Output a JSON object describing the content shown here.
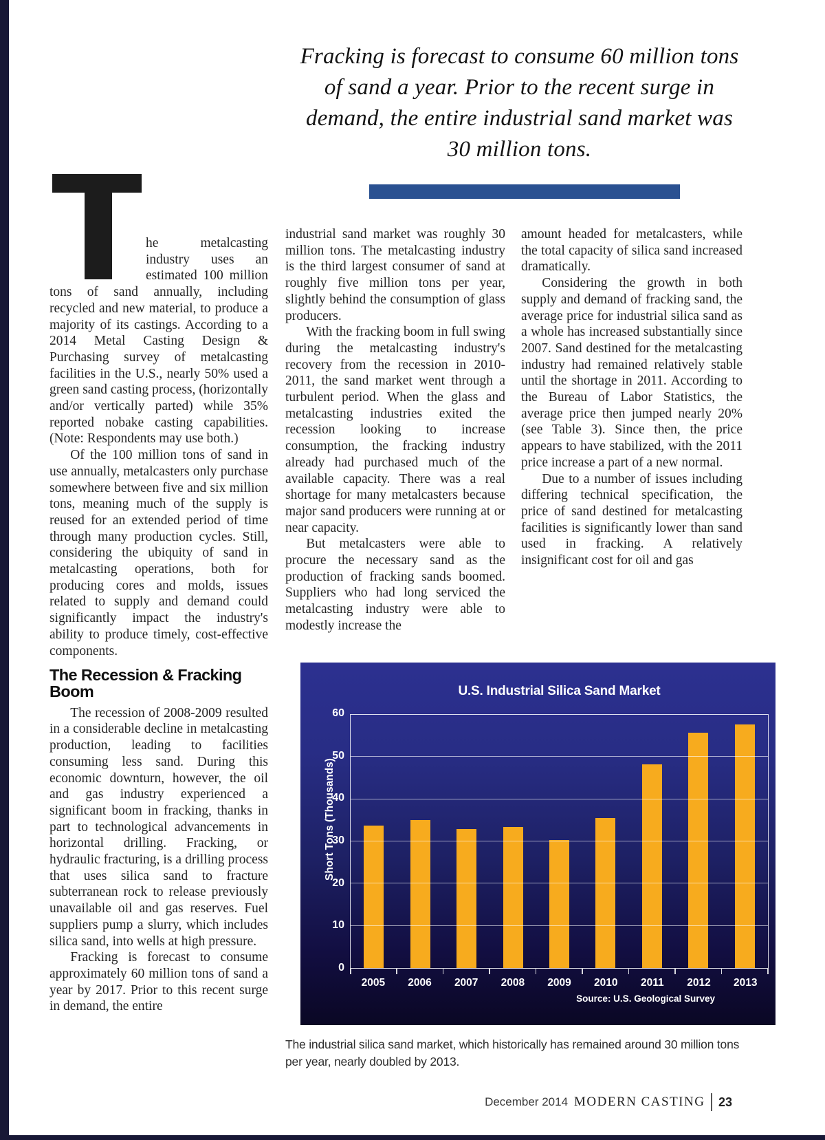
{
  "pullquote": "Fracking is forecast to consume 60 million tons of sand a year. Prior to the recent surge in demand, the entire industrial sand market was 30 million tons.",
  "article": {
    "drop_cap": "T",
    "section_heading": "The Recession & Fracking Boom",
    "col1": {
      "p1": "he metalcasting industry uses an estimated 100 million tons of sand annually, including recycled and new material, to produce a majority of its castings. According to a 2014 Metal Casting Design & Purchasing survey of metalcasting facilities in the U.S., nearly 50% used a green sand casting process, (horizontally and/or vertically parted) while 35% reported nobake casting capabilities. (Note: Respondents may use both.)",
      "p2": "Of the 100 million tons of sand in use annually, metalcasters only purchase somewhere between five and six million tons, meaning much of the supply is reused for an extended period of time through many production cycles. Still, considering the ubiquity of sand in metalcasting operations, both for producing cores and molds, issues related to supply and demand could significantly impact the industry's ability to produce timely, cost-effective components.",
      "p3": "The recession of 2008-2009 resulted in a considerable decline in metalcasting production, leading to facilities consuming less sand. During this economic downturn, however, the oil and gas industry experienced a significant boom in fracking, thanks in part to technological advancements in horizontal drilling. Fracking, or hydraulic fracturing, is a drilling process that uses silica sand to fracture subterranean rock to release previously unavailable oil and gas reserves. Fuel suppliers pump a slurry, which includes silica sand, into wells at high pressure.",
      "p4": "Fracking is forecast to consume approximately 60 million tons of sand a year by 2017. Prior to this recent surge in demand, the entire"
    },
    "col2": {
      "p1": "industrial sand market was roughly 30 million tons. The metalcasting industry is the third largest consumer of sand at roughly five million tons per year, slightly behind the consumption of glass producers.",
      "p2": "With the fracking boom in full swing during the metalcasting industry's recovery from the recession in 2010-2011, the sand market went through a turbulent period. When the glass and metalcasting industries exited the recession looking to increase consumption, the fracking industry already had purchased much of the available capacity. There was a real shortage for many metalcasters because major sand producers were running at or near capacity.",
      "p3": "But metalcasters were able to procure the necessary sand as the production of fracking sands boomed. Suppliers who had long serviced the metalcasting industry were able to modestly increase the"
    },
    "col3": {
      "p1": "amount headed for metalcasters, while the total capacity of silica sand increased dramatically.",
      "p2": "Considering the growth in both supply and demand of fracking sand, the average price for industrial silica sand as a whole has increased substantially since 2007. Sand destined for the metalcasting industry had remained relatively stable until the shortage in 2011. According to the Bureau of Labor Statistics, the average price then jumped nearly 20% (see Table 3). Since then, the price appears to have stabilized, with the 2011 price increase a part of a new normal.",
      "p3": "Due to a number of issues including differing technical specification, the price of sand destined for metalcasting facilities is significantly lower than sand used in fracking. A relatively insignificant cost for oil and gas"
    }
  },
  "chart_data": {
    "type": "bar",
    "title": "U.S. Industrial Silica Sand Market",
    "xlabel": "",
    "ylabel": "Short Tons (Thousands)",
    "categories": [
      "2005",
      "2006",
      "2007",
      "2008",
      "2009",
      "2010",
      "2011",
      "2012",
      "2013"
    ],
    "values": [
      33.7,
      35.0,
      33.0,
      33.5,
      30.3,
      35.5,
      48.3,
      55.8,
      57.8
    ],
    "ylim": [
      0,
      60
    ],
    "ytick_step": 10,
    "grid": true,
    "legend": false,
    "source": "Source: U.S. Geological Survey",
    "bar_color": "#F7AB1E"
  },
  "chart_caption": "The industrial silica sand market, which historically has remained around 30 million tons per year, nearly doubled by 2013.",
  "footer": {
    "issue": "December 2014",
    "magazine": "MODERN CASTING",
    "page_number": "23"
  }
}
